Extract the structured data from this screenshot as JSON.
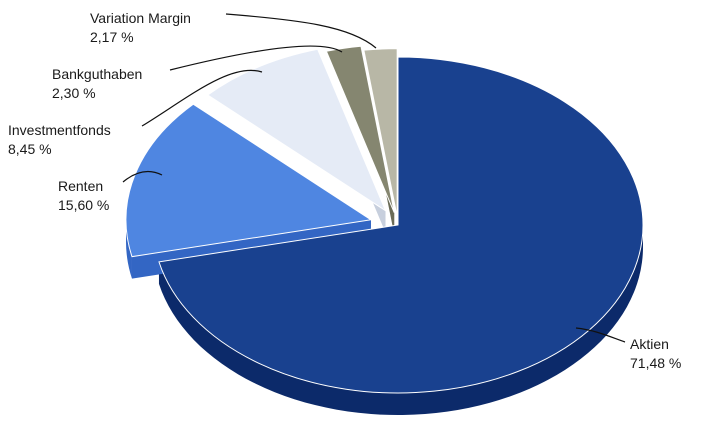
{
  "chart_data": {
    "type": "pie",
    "title": "",
    "legend": "none",
    "slices": [
      {
        "name": "Aktien",
        "label": "Aktien",
        "value_text": "71,48 %",
        "value": 71.48,
        "color": "#19418f",
        "side_color": "#0c2a6a"
      },
      {
        "name": "Renten",
        "label": "Renten",
        "value_text": "15,60 %",
        "value": 15.6,
        "color": "#4f86e1",
        "side_color": "#3366c4"
      },
      {
        "name": "Investmentfonds",
        "label": "Investmentfonds",
        "value_text": "8,45 %",
        "value": 8.45,
        "color": "#e5ebf6",
        "side_color": "#c7cfdd"
      },
      {
        "name": "Bankguthaben",
        "label": "Bankguthaben",
        "value_text": "2,30 %",
        "value": 2.3,
        "color": "#858670",
        "side_color": "#6a6b57"
      },
      {
        "name": "Variation Margin",
        "label": "Variation Margin",
        "value_text": "2,17 %",
        "value": 2.17,
        "color": "#b8b7a6",
        "side_color": "#99988a"
      }
    ]
  }
}
